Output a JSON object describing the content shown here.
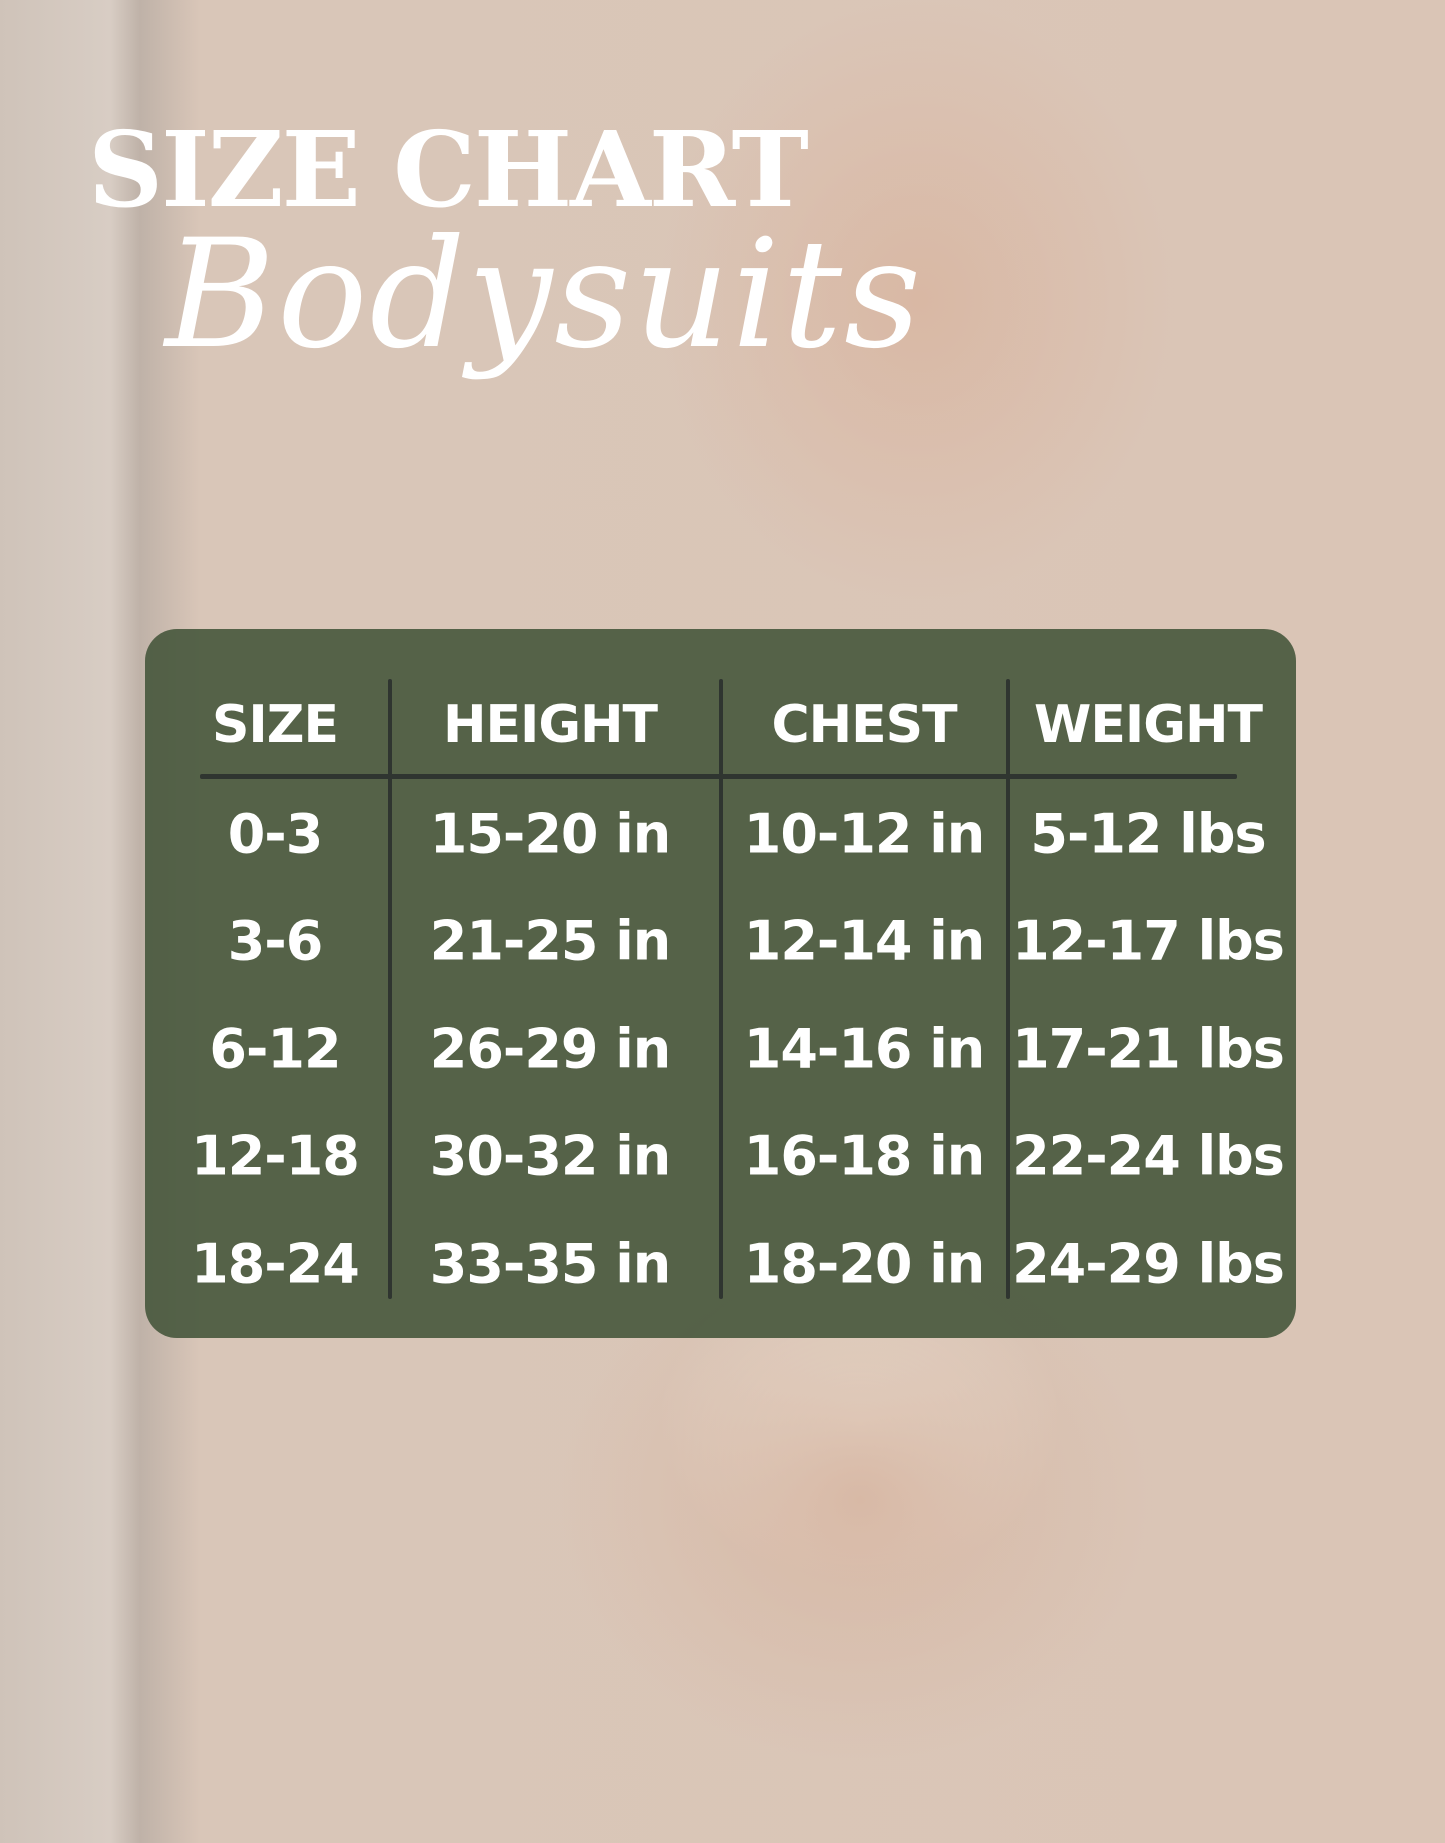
{
  "title": "SIZE CHART",
  "subtitle": "Bodysuits",
  "colors": {
    "panel": "#46563c",
    "text": "#ffffff",
    "divider": "#2f3530"
  },
  "table": {
    "headers": [
      "SIZE",
      "HEIGHT",
      "CHEST",
      "WEIGHT"
    ],
    "rows": [
      [
        "0-3",
        "15-20 in",
        "10-12 in",
        "5-12 lbs"
      ],
      [
        "3-6",
        "21-25 in",
        "12-14 in",
        "12-17 lbs"
      ],
      [
        "6-12",
        "26-29 in",
        "14-16 in",
        "17-21 lbs"
      ],
      [
        "12-18",
        "30-32 in",
        "16-18 in",
        "22-24 lbs"
      ],
      [
        "18-24",
        "33-35 in",
        "18-20 in",
        "24-29 lbs"
      ]
    ]
  }
}
